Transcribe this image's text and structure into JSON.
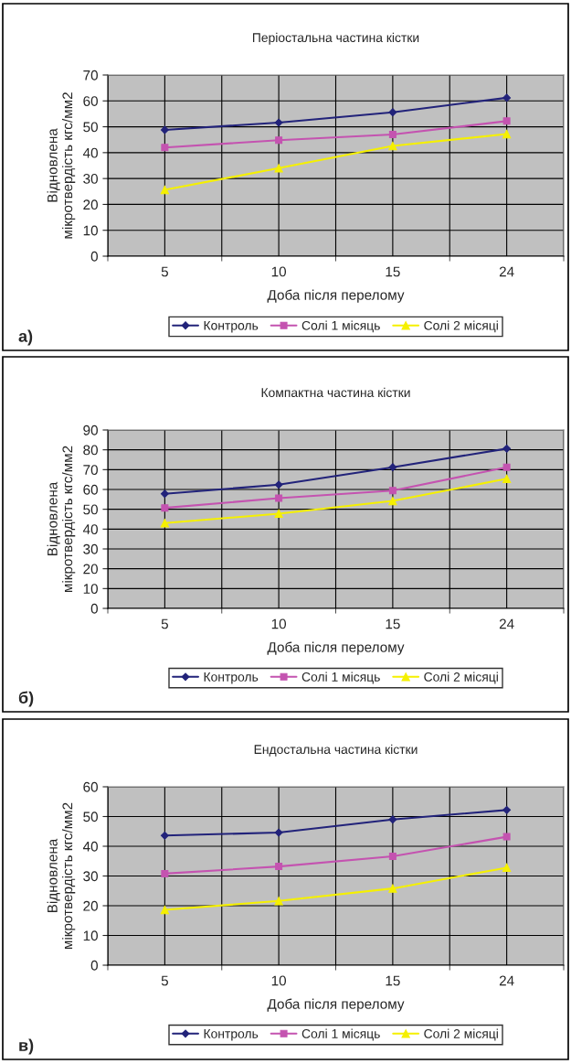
{
  "chart_data": [
    {
      "type": "line",
      "title": "Періостальна частина кістки",
      "xlabel": "Доба після перелому",
      "ylabel": "Відновлена\nмікротвердість кгс/мм2",
      "categories": [
        "5",
        "10",
        "15",
        "24"
      ],
      "ylim": [
        0,
        70
      ],
      "yticks": [
        0,
        10,
        20,
        30,
        40,
        50,
        60,
        70
      ],
      "grid": true,
      "legend": "bottom",
      "annotations": [
        "а)"
      ],
      "series": [
        {
          "name": "Контроль",
          "color": "#22237a",
          "marker": "diamond",
          "values": [
            48.8,
            51.6,
            55.6,
            61.2
          ]
        },
        {
          "name": "Солі 1 місяць",
          "color": "#c453b0",
          "marker": "square",
          "values": [
            42,
            44.8,
            47,
            52.2
          ]
        },
        {
          "name": "Солі 2 місяці",
          "color": "#f5f000",
          "marker": "triangle",
          "values": [
            25.6,
            34,
            42.6,
            47.2
          ]
        }
      ]
    },
    {
      "type": "line",
      "title": "Компактна частина кістки",
      "xlabel": "Доба після перелому",
      "ylabel": "Відновлена\nмікротвердість кгс/мм2",
      "categories": [
        "5",
        "10",
        "15",
        "24"
      ],
      "ylim": [
        0,
        90
      ],
      "yticks": [
        0,
        10,
        20,
        30,
        40,
        50,
        60,
        70,
        80,
        90
      ],
      "grid": true,
      "legend": "bottom",
      "annotations": [
        "б)"
      ],
      "series": [
        {
          "name": "Контроль",
          "color": "#22237a",
          "marker": "diamond",
          "values": [
            57.8,
            62.4,
            71.2,
            80.6
          ]
        },
        {
          "name": "Солі 1 місяць",
          "color": "#c453b0",
          "marker": "square",
          "values": [
            50.7,
            55.6,
            59.4,
            71.2
          ]
        },
        {
          "name": "Солі 2 місяці",
          "color": "#f5f000",
          "marker": "triangle",
          "values": [
            43,
            47.8,
            54.2,
            65.4
          ]
        }
      ]
    },
    {
      "type": "line",
      "title": "Ендостальна частина кістки",
      "xlabel": "Доба після перелому",
      "ylabel": "Відновлена\nмікротвердість кгс/мм2",
      "categories": [
        "5",
        "10",
        "15",
        "24"
      ],
      "ylim": [
        0,
        60
      ],
      "yticks": [
        0,
        10,
        20,
        30,
        40,
        50,
        60
      ],
      "grid": true,
      "legend": "bottom",
      "annotations": [
        "в)"
      ],
      "series": [
        {
          "name": "Контроль",
          "color": "#22237a",
          "marker": "diamond",
          "values": [
            43.6,
            44.6,
            49,
            52.2
          ]
        },
        {
          "name": "Солі 1 місяць",
          "color": "#c453b0",
          "marker": "square",
          "values": [
            30.8,
            33.2,
            36.6,
            43.2
          ]
        },
        {
          "name": "Солі 2 місяці",
          "color": "#f5f000",
          "marker": "triangle",
          "values": [
            18.6,
            21.6,
            25.8,
            32.8
          ]
        }
      ]
    }
  ]
}
